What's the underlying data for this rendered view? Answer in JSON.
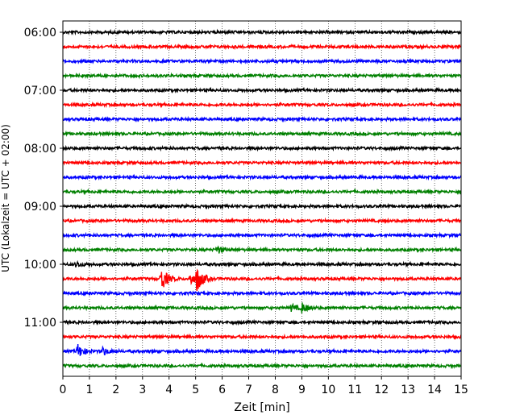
{
  "chart_data": {
    "type": "line",
    "title": "",
    "xlabel": "Zeit  [min]",
    "ylabel": "UTC (Lokalzeit = UTC + 02:00)",
    "xlim": [
      0,
      15
    ],
    "x_ticks": [
      "0",
      "1",
      "2",
      "3",
      "4",
      "5",
      "6",
      "7",
      "8",
      "9",
      "10",
      "11",
      "12",
      "13",
      "14",
      "15"
    ],
    "y_ticks": [
      "06:00",
      "07:00",
      "08:00",
      "09:00",
      "10:00",
      "11:00"
    ],
    "grid": "vertical dotted",
    "trace_colors": [
      "#000000",
      "#ff0000",
      "#0000ff",
      "#008000"
    ],
    "traces_start": "06:00",
    "trace_interval_minutes": 15,
    "trace_count": 24,
    "events": [
      {
        "trace": "10:15",
        "minute": 3.7,
        "amplitude": 1.0
      },
      {
        "trace": "10:15",
        "minute": 5.05,
        "amplitude": 0.9
      },
      {
        "trace": "10:15",
        "minute": 4.8,
        "amplitude": 0.45
      },
      {
        "trace": "10:45",
        "minute": 9.0,
        "amplitude": 0.35
      },
      {
        "trace": "10:45",
        "minute": 8.6,
        "amplitude": 0.25
      },
      {
        "trace": "11:30",
        "minute": 0.55,
        "amplitude": 0.55
      },
      {
        "trace": "11:30",
        "minute": 1.5,
        "amplitude": 0.3
      },
      {
        "trace": "09:45",
        "minute": 5.8,
        "amplitude": 0.3
      },
      {
        "trace": "10:00",
        "minute": 0.5,
        "amplitude": 0.2
      }
    ]
  }
}
